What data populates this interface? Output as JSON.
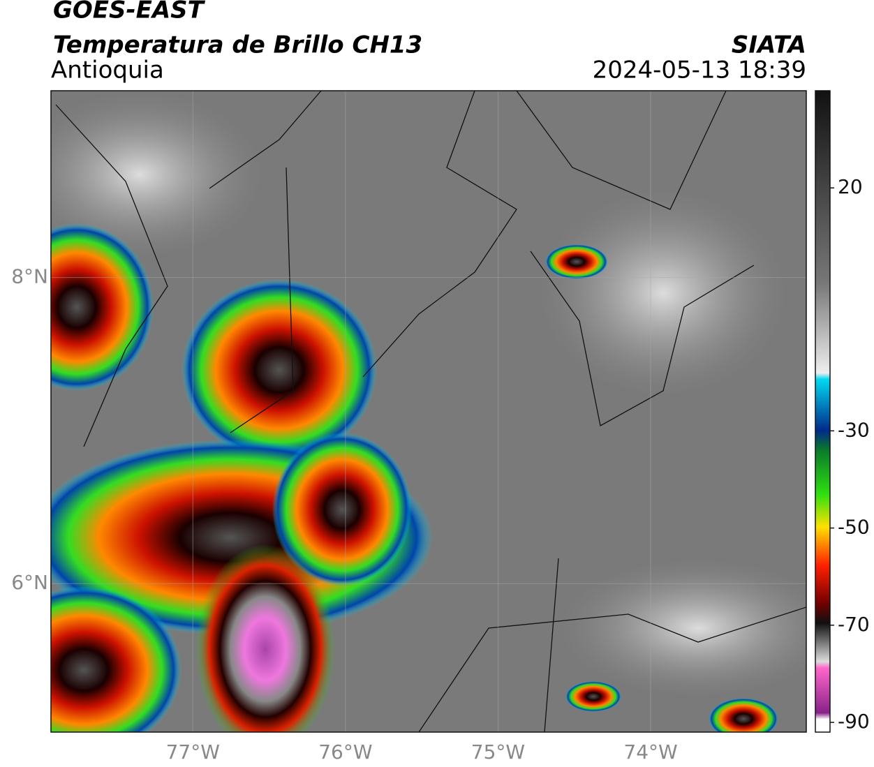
{
  "chart_data": {
    "type": "map",
    "title": "GOES-EAST",
    "subtitle": "Temperatura de Brillo CH13",
    "region": "Antioquia",
    "source": "SIATA",
    "datetime": "2024-05-13 18:39",
    "xlim": [
      -77.93,
      -72.98
    ],
    "xticks": [
      {
        "value": -77,
        "label": "77°W"
      },
      {
        "value": -76,
        "label": "76°W"
      },
      {
        "value": -75,
        "label": "75°W"
      },
      {
        "value": -74,
        "label": "74°W"
      }
    ],
    "ylim": [
      5.03,
      9.22
    ],
    "yticks": [
      {
        "value": 6,
        "label": "6°N"
      },
      {
        "value": 8,
        "label": "8°N"
      }
    ],
    "colorbar": {
      "lim": [
        -92,
        40
      ],
      "ticks": [
        20,
        -30,
        -50,
        -70,
        -90
      ]
    },
    "grid": true
  }
}
